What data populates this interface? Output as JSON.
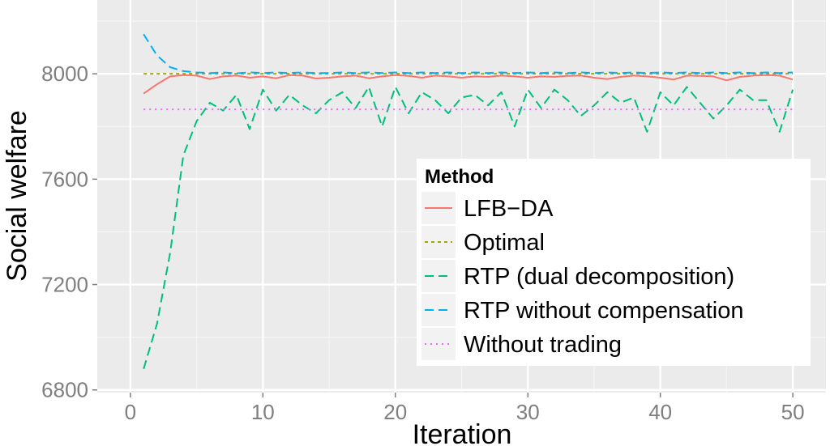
{
  "chart_data": {
    "type": "line",
    "xlabel": "Iteration",
    "ylabel": "Social welfare",
    "xlim": [
      -2.5,
      52.5
    ],
    "ylim": [
      6790,
      8280
    ],
    "x_ticks": [
      0,
      10,
      20,
      30,
      40,
      50
    ],
    "y_ticks": [
      6800,
      7200,
      7600,
      8000
    ],
    "grid": true,
    "legend": {
      "title": "Method",
      "placement": "bottom-right",
      "entries": [
        "LFB−DA",
        "Optimal",
        "RTP (dual decomposition)",
        "RTP without compensation",
        "Without trading"
      ]
    },
    "x": [
      1,
      2,
      3,
      4,
      5,
      6,
      7,
      8,
      9,
      10,
      11,
      12,
      13,
      14,
      15,
      16,
      17,
      18,
      19,
      20,
      21,
      22,
      23,
      24,
      25,
      26,
      27,
      28,
      29,
      30,
      31,
      32,
      33,
      34,
      35,
      36,
      37,
      38,
      39,
      40,
      41,
      42,
      43,
      44,
      45,
      46,
      47,
      48,
      49,
      50
    ],
    "series": [
      {
        "name": "LFB−DA",
        "color": "#F8766D",
        "dash": "solid",
        "values": [
          7925,
          7960,
          7990,
          7995,
          7993,
          7980,
          7990,
          7993,
          7985,
          7990,
          7983,
          7995,
          7993,
          7982,
          7985,
          7990,
          7993,
          7983,
          7990,
          7995,
          7992,
          7985,
          7993,
          7990,
          7985,
          7990,
          7988,
          7993,
          7990,
          7985,
          7990,
          7988,
          7992,
          7993,
          7985,
          7980,
          7988,
          7993,
          7990,
          7985,
          7978,
          7993,
          7992,
          7990,
          7975,
          7988,
          7993,
          7995,
          7993,
          7978
        ]
      },
      {
        "name": "Optimal",
        "color": "#A3A500",
        "dash": "short",
        "values": [
          8000,
          8000,
          8000,
          8000,
          8000,
          8000,
          8000,
          8000,
          8000,
          8000,
          8000,
          8000,
          8000,
          8000,
          8000,
          8000,
          8000,
          8000,
          8000,
          8000,
          8000,
          8000,
          8000,
          8000,
          8000,
          8000,
          8000,
          8000,
          8000,
          8000,
          8000,
          8000,
          8000,
          8000,
          8000,
          8000,
          8000,
          8000,
          8000,
          8000,
          8000,
          8000,
          8000,
          8000,
          8000,
          8000,
          8000,
          8000,
          8000,
          8000
        ]
      },
      {
        "name": "RTP (dual decomposition)",
        "color": "#00BF7D",
        "dash": "long",
        "values": [
          6880,
          7050,
          7320,
          7690,
          7820,
          7890,
          7860,
          7920,
          7790,
          7940,
          7860,
          7920,
          7880,
          7850,
          7900,
          7930,
          7870,
          7950,
          7800,
          7950,
          7850,
          7930,
          7900,
          7850,
          7910,
          7920,
          7880,
          7930,
          7800,
          7940,
          7870,
          7940,
          7900,
          7840,
          7880,
          7930,
          7890,
          7910,
          7780,
          7930,
          7880,
          7950,
          7890,
          7830,
          7880,
          7940,
          7900,
          7900,
          7780,
          7940
        ]
      },
      {
        "name": "RTP without compensation",
        "color": "#00B0F6",
        "dash": "long",
        "values": [
          8150,
          8070,
          8025,
          8010,
          8005,
          8003,
          8005,
          8002,
          8005,
          8003,
          8005,
          8003,
          8005,
          8003,
          8003,
          8005,
          8003,
          8005,
          8003,
          8005,
          8003,
          8005,
          8003,
          8005,
          8003,
          8005,
          8003,
          8005,
          8003,
          8005,
          8003,
          8005,
          8003,
          8005,
          8003,
          8005,
          8003,
          8005,
          8003,
          8005,
          8003,
          8005,
          8003,
          8005,
          8003,
          8005,
          8003,
          8005,
          8003,
          8005
        ]
      },
      {
        "name": "Without trading",
        "color": "#E76BF3",
        "dash": "dotted",
        "values": [
          7865,
          7865,
          7865,
          7865,
          7865,
          7865,
          7865,
          7865,
          7865,
          7865,
          7865,
          7865,
          7865,
          7865,
          7865,
          7865,
          7865,
          7865,
          7865,
          7865,
          7865,
          7865,
          7865,
          7865,
          7865,
          7865,
          7865,
          7865,
          7865,
          7865,
          7865,
          7865,
          7865,
          7865,
          7865,
          7865,
          7865,
          7865,
          7865,
          7865,
          7865,
          7865,
          7865,
          7865,
          7865,
          7865,
          7865,
          7865,
          7865,
          7865
        ]
      }
    ]
  }
}
